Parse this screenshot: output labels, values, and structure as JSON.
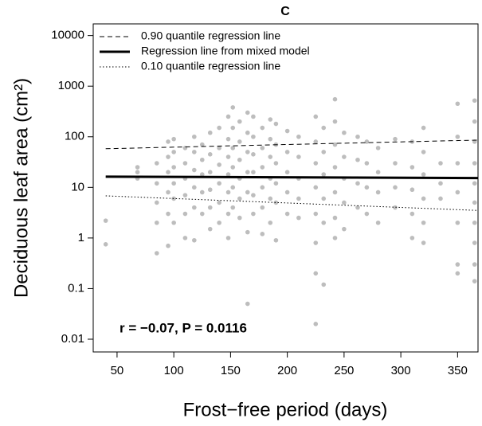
{
  "chart_data": {
    "type": "scatter",
    "title": "C",
    "x_label": "Frost−free period (days)",
    "y_label": "Deciduous leaf area (cm²)",
    "annotation": "r = −0.07, P = 0.0116",
    "log_y": true,
    "grid": false,
    "legend": "top-left",
    "xlim": [
      29,
      368
    ],
    "ylim": [
      0.0056,
      17000
    ],
    "xticks": [
      50,
      100,
      150,
      200,
      250,
      300,
      350
    ],
    "yticks": [
      10000,
      1000,
      100,
      10,
      1,
      0.1,
      0.01
    ],
    "series": [
      {
        "color": "#bdbdbd",
        "x": [
          40,
          40,
          68,
          68,
          68,
          85,
          85,
          85,
          85,
          85,
          95,
          95,
          95,
          95,
          95,
          95,
          100,
          100,
          100,
          100,
          100,
          100,
          110,
          110,
          110,
          110,
          110,
          110,
          118,
          118,
          118,
          118,
          118,
          118,
          125,
          125,
          125,
          125,
          125,
          132,
          132,
          132,
          132,
          132,
          132,
          140,
          140,
          140,
          140,
          140,
          140,
          148,
          148,
          148,
          148,
          148,
          148,
          148,
          152,
          152,
          152,
          152,
          152,
          152,
          158,
          158,
          158,
          158,
          158,
          158,
          165,
          165,
          165,
          165,
          165,
          165,
          165,
          170,
          170,
          170,
          170,
          170,
          170,
          178,
          178,
          178,
          178,
          178,
          178,
          185,
          185,
          185,
          185,
          185,
          185,
          190,
          190,
          190,
          190,
          190,
          190,
          200,
          200,
          200,
          200,
          200,
          210,
          210,
          210,
          210,
          210,
          225,
          225,
          225,
          225,
          225,
          225,
          225,
          225,
          232,
          232,
          232,
          232,
          232,
          232,
          242,
          242,
          242,
          242,
          242,
          242,
          242,
          250,
          250,
          250,
          250,
          250,
          262,
          262,
          262,
          262,
          270,
          270,
          270,
          270,
          280,
          280,
          280,
          280,
          295,
          295,
          295,
          295,
          310,
          310,
          310,
          310,
          310,
          320,
          320,
          320,
          320,
          320,
          320,
          335,
          335,
          335,
          350,
          350,
          350,
          350,
          350,
          350,
          350,
          365,
          365,
          365,
          365,
          365,
          365,
          365,
          365,
          365,
          365
        ],
        "values": [
          2.2,
          0.75,
          25,
          15,
          20,
          30,
          12,
          5,
          2,
          0.5,
          80,
          40,
          20,
          8,
          3,
          0.7,
          90,
          50,
          25,
          12,
          6,
          2,
          60,
          30,
          15,
          7,
          3,
          1,
          100,
          50,
          22,
          10,
          4,
          0.9,
          70,
          35,
          18,
          8,
          3,
          120,
          45,
          20,
          9,
          4,
          1.5,
          150,
          60,
          28,
          12,
          5,
          2,
          250,
          90,
          40,
          18,
          8,
          3,
          1,
          380,
          150,
          60,
          25,
          10,
          4,
          200,
          80,
          35,
          15,
          6,
          2.5,
          300,
          120,
          50,
          20,
          8,
          1.3,
          0.05,
          250,
          100,
          45,
          20,
          7,
          3,
          150,
          60,
          25,
          10,
          4,
          1.2,
          220,
          90,
          40,
          15,
          6,
          2,
          180,
          70,
          30,
          12,
          5,
          0.9,
          130,
          50,
          20,
          8,
          3,
          100,
          40,
          15,
          6,
          2.5,
          250,
          80,
          30,
          10,
          3,
          0.8,
          0.2,
          0.02,
          150,
          50,
          18,
          6,
          2,
          0.12,
          550,
          200,
          70,
          25,
          8,
          2.5,
          1,
          120,
          40,
          15,
          5,
          1.5,
          100,
          35,
          12,
          4,
          80,
          30,
          10,
          3,
          60,
          20,
          8,
          2,
          90,
          30,
          10,
          4,
          80,
          25,
          9,
          3,
          1,
          150,
          50,
          18,
          6,
          2,
          0.8,
          30,
          12,
          6,
          450,
          100,
          30,
          8,
          2,
          0.3,
          0.2,
          520,
          200,
          80,
          30,
          12,
          5,
          2,
          0.8,
          0.3,
          0.14
        ]
      }
    ],
    "lines": [
      {
        "name": "0.90 quantile regression line",
        "color": "#000000",
        "linestyle": "dashed",
        "linewidth": 1,
        "x": [
          40,
          368
        ],
        "values": [
          58,
          86
        ]
      },
      {
        "name": "Regression line from mixed model",
        "color": "#000000",
        "linestyle": "solid",
        "linewidth": 3,
        "x": [
          40,
          368
        ],
        "values": [
          16.3,
          15.3
        ]
      },
      {
        "name": "0.10 quantile regression line",
        "color": "#000000",
        "linestyle": "dotted",
        "linewidth": 1,
        "x": [
          40,
          368
        ],
        "values": [
          6.8,
          3.5
        ]
      }
    ]
  }
}
